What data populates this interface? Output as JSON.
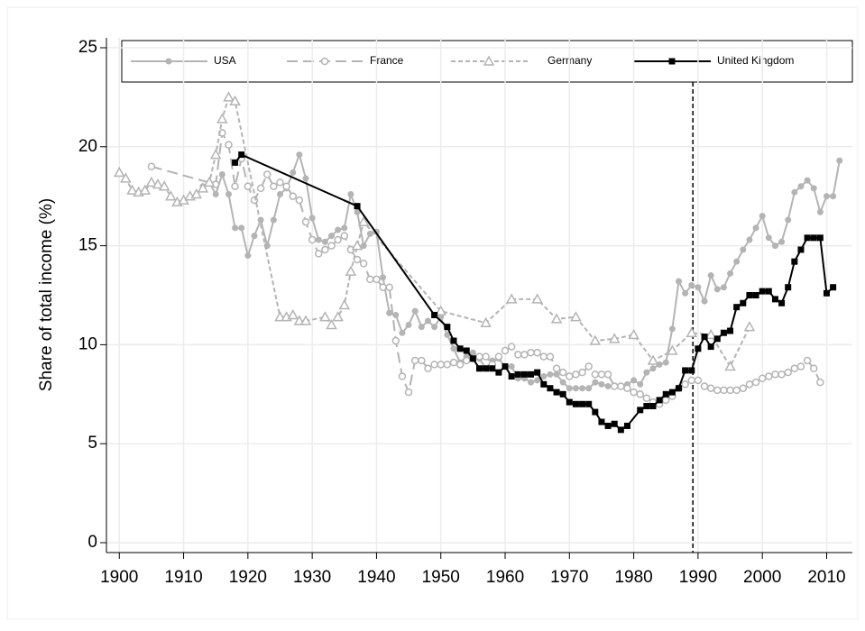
{
  "chart_data": {
    "type": "line",
    "ylabel": "Share of total income (%)",
    "xlim": [
      1898,
      2014
    ],
    "ylim": [
      -0.5,
      25.5
    ],
    "xticks": [
      1900,
      1910,
      1920,
      1930,
      1940,
      1950,
      1960,
      1970,
      1980,
      1990,
      2000,
      2010
    ],
    "yticks": [
      0,
      5,
      10,
      15,
      20,
      25
    ],
    "reference_line_x": 1989.2,
    "series": [
      {
        "name": "USA",
        "color": "#b4b4b4",
        "dash": "solid",
        "marker": "circle",
        "x": [
          1913,
          1914,
          1915,
          1916,
          1917,
          1918,
          1919,
          1920,
          1921,
          1922,
          1923,
          1924,
          1925,
          1926,
          1927,
          1928,
          1929,
          1930,
          1931,
          1932,
          1933,
          1934,
          1935,
          1936,
          1937,
          1938,
          1939,
          1940,
          1941,
          1942,
          1943,
          1944,
          1945,
          1946,
          1947,
          1948,
          1949,
          1950,
          1951,
          1952,
          1953,
          1954,
          1955,
          1956,
          1957,
          1958,
          1959,
          1960,
          1961,
          1962,
          1963,
          1964,
          1965,
          1966,
          1967,
          1968,
          1969,
          1970,
          1971,
          1972,
          1973,
          1974,
          1975,
          1976,
          1977,
          1978,
          1979,
          1980,
          1981,
          1982,
          1983,
          1984,
          1985,
          1986,
          1987,
          1988,
          1989,
          1990,
          1991,
          1992,
          1993,
          1994,
          1995,
          1996,
          1997,
          1998,
          1999,
          2000,
          2001,
          2002,
          2003,
          2004,
          2005,
          2006,
          2007,
          2008,
          2009,
          2010,
          2011,
          2012
        ],
        "values": [
          18.0,
          18.2,
          17.6,
          18.6,
          17.6,
          15.9,
          15.9,
          14.5,
          15.5,
          16.3,
          15.0,
          16.3,
          17.6,
          17.9,
          18.7,
          19.6,
          18.4,
          16.4,
          15.3,
          15.2,
          15.5,
          15.8,
          15.9,
          17.6,
          16.7,
          15.0,
          15.6,
          15.7,
          13.4,
          11.6,
          11.5,
          10.6,
          11.0,
          11.7,
          10.9,
          11.2,
          10.9,
          11.4,
          10.5,
          9.8,
          9.1,
          9.4,
          9.6,
          9.3,
          8.8,
          9.2,
          9.3,
          8.9,
          8.9,
          8.3,
          8.3,
          8.1,
          8.2,
          8.4,
          8.5,
          8.5,
          8.1,
          7.8,
          7.8,
          7.8,
          7.8,
          8.1,
          8.0,
          7.9,
          7.9,
          7.9,
          8.0,
          8.2,
          8.0,
          8.6,
          8.8,
          9.0,
          9.1,
          10.8,
          13.2,
          12.6,
          13.0,
          12.9,
          12.2,
          13.5,
          12.8,
          12.9,
          13.6,
          14.2,
          14.8,
          15.3,
          15.9,
          16.5,
          15.4,
          15.0,
          15.2,
          16.3,
          17.7,
          18.0,
          18.3,
          17.9,
          16.7,
          17.5,
          17.5,
          19.3
        ]
      },
      {
        "name": "France",
        "color": "#b4b4b4",
        "dash": "long",
        "marker": "open-circle",
        "x": [
          1905,
          1915,
          1916,
          1917,
          1918,
          1919,
          1920,
          1921,
          1922,
          1923,
          1924,
          1925,
          1926,
          1927,
          1928,
          1929,
          1930,
          1931,
          1932,
          1933,
          1934,
          1935,
          1936,
          1937,
          1938,
          1939,
          1940,
          1941,
          1942,
          1943,
          1944,
          1945,
          1946,
          1947,
          1948,
          1949,
          1950,
          1951,
          1952,
          1953,
          1954,
          1955,
          1956,
          1957,
          1958,
          1959,
          1960,
          1961,
          1962,
          1963,
          1964,
          1965,
          1966,
          1967,
          1968,
          1969,
          1970,
          1971,
          1972,
          1973,
          1974,
          1975,
          1976,
          1977,
          1978,
          1979,
          1980,
          1981,
          1982,
          1983,
          1984,
          1985,
          1986,
          1987,
          1988,
          1989,
          1990,
          1991,
          1992,
          1993,
          1994,
          1995,
          1996,
          1997,
          1998,
          1999,
          2000,
          2001,
          2002,
          2003,
          2004,
          2005,
          2006,
          2007,
          2008,
          2009
        ],
        "values": [
          19.0,
          18.1,
          20.7,
          20.1,
          18.0,
          19.4,
          18.0,
          17.3,
          17.9,
          18.6,
          18.0,
          18.2,
          18.0,
          17.5,
          17.3,
          16.2,
          15.3,
          14.6,
          14.8,
          15.0,
          15.3,
          15.5,
          14.8,
          14.3,
          14.1,
          13.3,
          13.3,
          12.9,
          12.9,
          10.2,
          8.4,
          7.6,
          9.2,
          9.2,
          8.8,
          9.0,
          9.0,
          9.0,
          9.1,
          9.0,
          9.2,
          9.3,
          9.4,
          9.4,
          9.0,
          9.4,
          9.7,
          9.9,
          9.5,
          9.5,
          9.6,
          9.6,
          9.4,
          9.4,
          8.8,
          8.6,
          8.4,
          8.5,
          8.6,
          8.9,
          8.5,
          8.5,
          8.5,
          7.9,
          7.9,
          7.8,
          7.6,
          7.5,
          7.3,
          7.1,
          7.0,
          7.2,
          7.4,
          7.8,
          8.0,
          8.2,
          8.2,
          7.9,
          7.8,
          7.7,
          7.7,
          7.7,
          7.7,
          7.8,
          8.0,
          8.1,
          8.3,
          8.4,
          8.5,
          8.5,
          8.6,
          8.8,
          8.9,
          9.2,
          8.8,
          8.1
        ]
      },
      {
        "name": "Germany",
        "color": "#b4b4b4",
        "dash": "short",
        "marker": "triangle",
        "x": [
          1900,
          1901,
          1902,
          1903,
          1904,
          1905,
          1906,
          1907,
          1908,
          1909,
          1910,
          1911,
          1912,
          1913,
          1914,
          1915,
          1916,
          1917,
          1918,
          1925,
          1926,
          1927,
          1928,
          1929,
          1932,
          1933,
          1934,
          1935,
          1936,
          1937,
          1938,
          1950,
          1957,
          1961,
          1965,
          1968,
          1971,
          1974,
          1977,
          1980,
          1983,
          1986,
          1989,
          1992,
          1995,
          1998
        ],
        "values": [
          18.7,
          18.4,
          17.8,
          17.7,
          17.8,
          18.2,
          18.1,
          18.0,
          17.5,
          17.2,
          17.3,
          17.5,
          17.6,
          17.9,
          18.2,
          19.6,
          21.4,
          22.5,
          22.3,
          11.4,
          11.4,
          11.5,
          11.2,
          11.2,
          11.4,
          11.0,
          11.4,
          12.0,
          13.7,
          15.0,
          16.2,
          11.7,
          11.1,
          12.3,
          12.3,
          11.3,
          11.4,
          10.2,
          10.3,
          10.5,
          9.2,
          9.7,
          10.6,
          10.5,
          8.9,
          10.9
        ]
      },
      {
        "name": "United Kingdom",
        "color": "#000000",
        "dash": "solid",
        "marker": "square",
        "x": [
          1918,
          1919,
          1937,
          1949,
          1951,
          1952,
          1953,
          1954,
          1955,
          1956,
          1957,
          1958,
          1959,
          1960,
          1961,
          1962,
          1963,
          1964,
          1965,
          1966,
          1967,
          1968,
          1969,
          1970,
          1971,
          1972,
          1973,
          1974,
          1975,
          1976,
          1977,
          1978,
          1979,
          1981,
          1982,
          1983,
          1984,
          1985,
          1986,
          1987,
          1988,
          1989,
          1990,
          1991,
          1992,
          1993,
          1994,
          1995,
          1996,
          1997,
          1998,
          1999,
          2000,
          2001,
          2002,
          2003,
          2004,
          2005,
          2006,
          2007,
          2008,
          2009,
          2010,
          2011
        ],
        "values": [
          19.2,
          19.6,
          17.0,
          11.5,
          10.9,
          10.2,
          9.8,
          9.7,
          9.3,
          8.8,
          8.8,
          8.8,
          8.6,
          8.9,
          8.4,
          8.5,
          8.5,
          8.5,
          8.6,
          8.0,
          7.8,
          7.6,
          7.5,
          7.1,
          7.0,
          7.0,
          7.0,
          6.6,
          6.1,
          5.9,
          6.0,
          5.7,
          5.9,
          6.7,
          6.9,
          6.9,
          7.2,
          7.5,
          7.6,
          7.8,
          8.7,
          8.7,
          9.8,
          10.4,
          9.9,
          10.3,
          10.6,
          10.7,
          11.9,
          12.1,
          12.5,
          12.5,
          12.7,
          12.7,
          12.3,
          12.1,
          12.9,
          14.2,
          14.8,
          15.4,
          15.4,
          15.4,
          12.6,
          12.9
        ]
      }
    ]
  }
}
